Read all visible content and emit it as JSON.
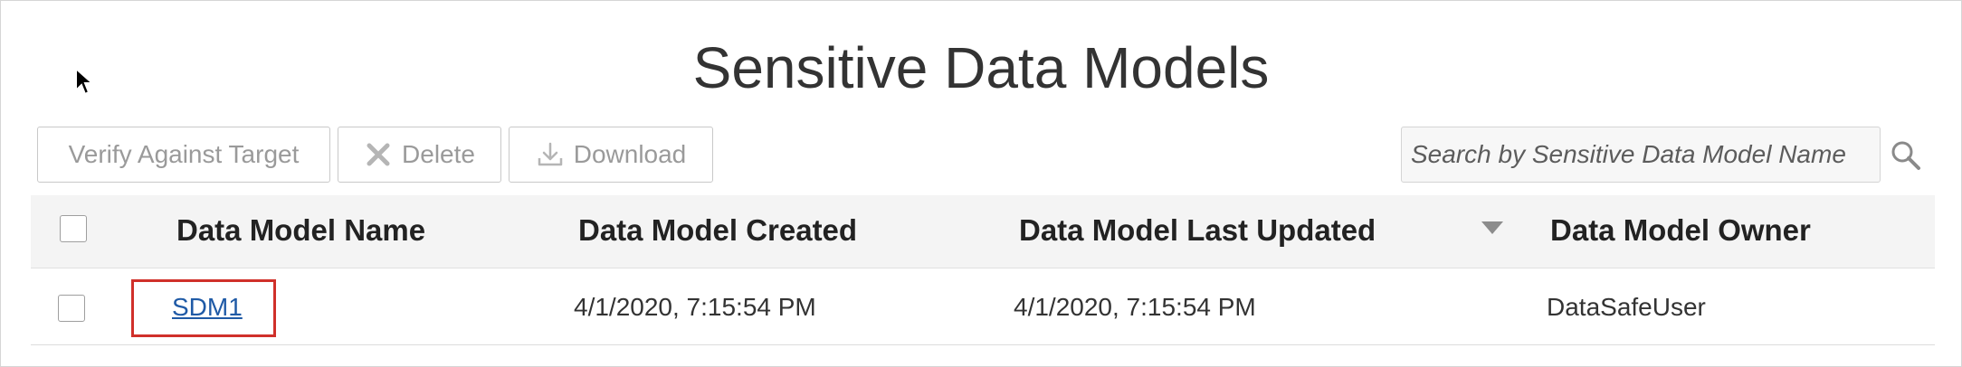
{
  "page": {
    "title": "Sensitive Data Models"
  },
  "toolbar": {
    "verify_label": "Verify Against Target",
    "delete_label": "Delete",
    "download_label": "Download"
  },
  "search": {
    "placeholder": "Search by Sensitive Data Model Name"
  },
  "table": {
    "columns": [
      {
        "label": "Data Model Name"
      },
      {
        "label": "Data Model Created"
      },
      {
        "label": "Data Model Last Updated"
      },
      {
        "label": "Data Model Owner"
      }
    ],
    "rows": [
      {
        "name": "SDM1",
        "created": "4/1/2020, 7:15:54 PM",
        "updated": "4/1/2020, 7:15:54 PM",
        "owner": "DataSafeUser"
      }
    ]
  },
  "colors": {
    "link": "#1f5aa6",
    "highlight": "#d0302a",
    "header_bg": "#f4f4f4",
    "disabled_text": "#9a9a9a"
  },
  "icons": {
    "cursor": "mouse-pointer-icon",
    "delete": "x-icon",
    "download": "download-icon",
    "search": "magnifier-icon",
    "sort": "sort-descending-icon"
  }
}
